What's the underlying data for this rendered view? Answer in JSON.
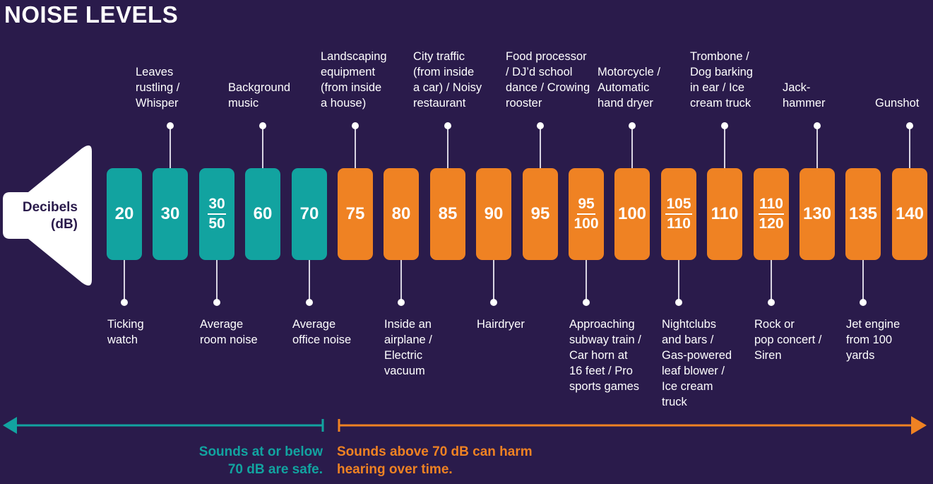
{
  "title": "NOISE LEVELS",
  "speaker": {
    "line1": "Decibels",
    "line2": "(dB)"
  },
  "colors": {
    "background": "#2a1b4b",
    "safe": "#12a3a0",
    "harm": "#ef8223",
    "text": "#ffffff"
  },
  "levels": [
    {
      "value": "20",
      "zone": "safe",
      "bottom_label": "Ticking\nwatch"
    },
    {
      "value": "30",
      "zone": "safe",
      "top_label": "Leaves\nrustling /\nWhisper"
    },
    {
      "value_top": "30",
      "value_bottom": "50",
      "zone": "safe",
      "bottom_label": "Average\nroom noise"
    },
    {
      "value": "60",
      "zone": "safe",
      "top_label": "Background\nmusic"
    },
    {
      "value": "70",
      "zone": "safe",
      "bottom_label": "Average\noffice noise"
    },
    {
      "value": "75",
      "zone": "harm",
      "top_label": "Landscaping\nequipment\n(from inside\na house)"
    },
    {
      "value": "80",
      "zone": "harm",
      "bottom_label": "Inside an\nairplane /\nElectric\nvacuum"
    },
    {
      "value": "85",
      "zone": "harm",
      "top_label": "City traffic\n(from inside\na car) / Noisy\nrestaurant"
    },
    {
      "value": "90",
      "zone": "harm",
      "bottom_label": "Hairdryer"
    },
    {
      "value": "95",
      "zone": "harm",
      "top_label": "Food processor\n/ DJ’d school\ndance / Crowing\nrooster"
    },
    {
      "value_top": "95",
      "value_bottom": "100",
      "zone": "harm",
      "bottom_label": "Approaching\nsubway train /\nCar horn at\n16 feet / Pro\nsports games"
    },
    {
      "value": "100",
      "zone": "harm",
      "top_label": "Motorcycle /\nAutomatic\nhand dryer"
    },
    {
      "value_top": "105",
      "value_bottom": "110",
      "zone": "harm",
      "bottom_label": "Nightclubs\nand bars /\nGas-powered\nleaf blower /\nIce cream\ntruck"
    },
    {
      "value": "110",
      "zone": "harm",
      "top_label": "Trombone /\nDog barking\nin ear / Ice\ncream truck"
    },
    {
      "value_top": "110",
      "value_bottom": "120",
      "zone": "harm",
      "bottom_label": "Rock or\npop concert /\nSiren"
    },
    {
      "value": "130",
      "zone": "harm",
      "top_label": "Jack-\nhammer"
    },
    {
      "value": "135",
      "zone": "harm",
      "bottom_label": "Jet engine\nfrom 100\nyards"
    },
    {
      "value": "140",
      "zone": "harm",
      "top_label": "Gunshot"
    }
  ],
  "safe_note": {
    "line1": "Sounds at or below",
    "line2": "70 dB are safe."
  },
  "harm_note": {
    "line1": "Sounds above 70 dB can harm",
    "line2": "hearing over time."
  }
}
